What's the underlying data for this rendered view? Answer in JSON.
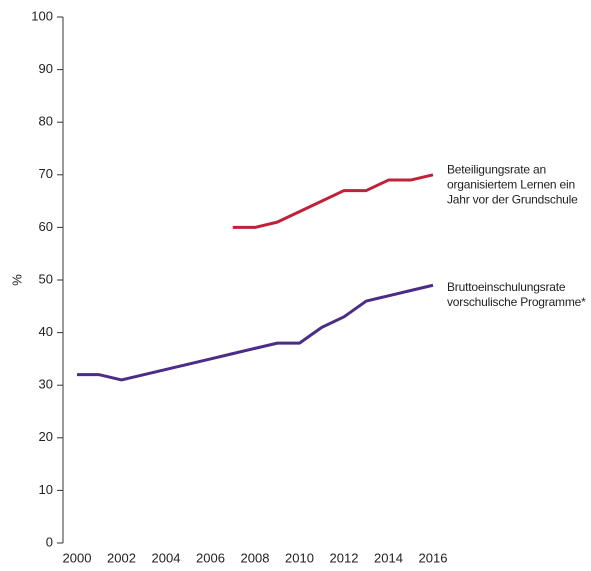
{
  "chart_data": {
    "type": "line",
    "y_label": "%",
    "x": [
      2000,
      2001,
      2002,
      2003,
      2004,
      2005,
      2006,
      2007,
      2008,
      2009,
      2010,
      2011,
      2012,
      2013,
      2014,
      2015,
      2016
    ],
    "xlim": [
      2000,
      2016
    ],
    "xticks": [
      2000,
      2002,
      2004,
      2006,
      2008,
      2010,
      2012,
      2014,
      2016
    ],
    "ylim": [
      0,
      100
    ],
    "yticks": [
      0,
      10,
      20,
      30,
      40,
      50,
      60,
      70,
      80,
      90,
      100
    ],
    "series": [
      {
        "name": "Beteiligungsrate an organisiertem Lernen ein Jahr vor der Grundschule",
        "color": "#c0213a",
        "values": [
          null,
          null,
          null,
          null,
          null,
          null,
          null,
          60,
          60,
          61,
          63,
          65,
          67,
          67,
          69,
          69,
          70
        ]
      },
      {
        "name": "Bruttoeinschulungsrate vorschulische Programme*",
        "color": "#4b2c87",
        "values": [
          32,
          32,
          31,
          32,
          33,
          34,
          35,
          36,
          37,
          38,
          38,
          41,
          43,
          46,
          47,
          48,
          49
        ]
      }
    ]
  }
}
